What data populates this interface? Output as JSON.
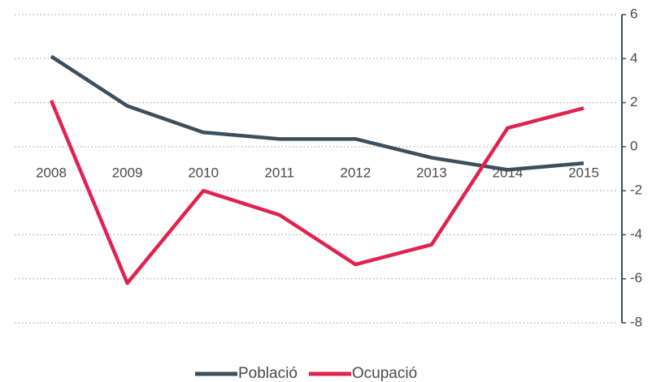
{
  "chart_data": {
    "type": "line",
    "categories": [
      "2008",
      "2009",
      "2010",
      "2011",
      "2012",
      "2013",
      "2014",
      "2015"
    ],
    "series": [
      {
        "name": "Població",
        "color": "#3d4f5c",
        "values": [
          4.1,
          1.85,
          0.65,
          0.35,
          0.35,
          -0.5,
          -1.05,
          -0.75
        ]
      },
      {
        "name": "Ocupació",
        "color": "#e0234e",
        "values": [
          2.1,
          -6.2,
          -2.0,
          -3.1,
          -5.35,
          -4.45,
          0.85,
          1.75
        ]
      }
    ],
    "ylim": [
      -8,
      6
    ],
    "yticks": [
      6,
      4,
      2,
      0,
      -2,
      -4,
      -6,
      -8
    ],
    "grid": true,
    "y_axis_side": "right",
    "legend": "bottom"
  }
}
